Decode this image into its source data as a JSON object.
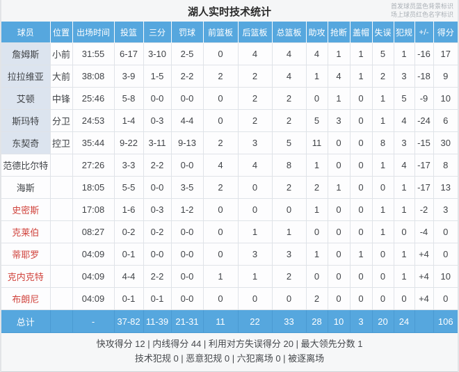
{
  "title": "湖人实时技术统计",
  "legend": {
    "line1": "首发球员蓝色背景标识",
    "line2": "场上球员红色名字标识"
  },
  "colors": {
    "header_blue": "#56a7de",
    "total_row_blue": "#56a7de",
    "starter_name_bg": "#dce4ef",
    "oncourt_name_red": "#d0433c"
  },
  "columns": [
    "球员",
    "位置",
    "出场时间",
    "投篮",
    "三分",
    "罚球",
    "前篮板",
    "后篮板",
    "总篮板",
    "助攻",
    "抢断",
    "盖帽",
    "失误",
    "犯规",
    "+/-",
    "得分"
  ],
  "players": [
    {
      "name": "詹姆斯",
      "position": "小前",
      "starter": true,
      "on_court": false,
      "stats": [
        "31:55",
        "6-17",
        "3-10",
        "2-5",
        "0",
        "4",
        "4",
        "4",
        "1",
        "1",
        "5",
        "1",
        "-16",
        "17"
      ]
    },
    {
      "name": "拉拉维亚",
      "position": "大前",
      "starter": true,
      "on_court": false,
      "stats": [
        "38:08",
        "3-9",
        "1-5",
        "2-2",
        "2",
        "2",
        "4",
        "1",
        "4",
        "1",
        "2",
        "3",
        "-18",
        "9"
      ]
    },
    {
      "name": "艾顿",
      "position": "中锋",
      "starter": true,
      "on_court": false,
      "stats": [
        "25:46",
        "5-8",
        "0-0",
        "0-0",
        "0",
        "2",
        "2",
        "0",
        "1",
        "0",
        "1",
        "5",
        "-9",
        "10"
      ]
    },
    {
      "name": "斯玛特",
      "position": "分卫",
      "starter": true,
      "on_court": false,
      "stats": [
        "24:53",
        "1-4",
        "0-3",
        "4-4",
        "0",
        "2",
        "2",
        "5",
        "3",
        "0",
        "1",
        "4",
        "-24",
        "6"
      ]
    },
    {
      "name": "东契奇",
      "position": "控卫",
      "starter": true,
      "on_court": false,
      "stats": [
        "35:44",
        "9-22",
        "3-11",
        "9-13",
        "2",
        "3",
        "5",
        "11",
        "0",
        "0",
        "8",
        "3",
        "-15",
        "30"
      ]
    },
    {
      "name": "范德比尔特",
      "position": "",
      "starter": false,
      "on_court": false,
      "stats": [
        "27:26",
        "3-3",
        "2-2",
        "0-0",
        "4",
        "4",
        "8",
        "1",
        "0",
        "0",
        "1",
        "4",
        "-17",
        "8"
      ]
    },
    {
      "name": "海斯",
      "position": "",
      "starter": false,
      "on_court": false,
      "stats": [
        "18:05",
        "5-5",
        "0-0",
        "3-5",
        "2",
        "0",
        "2",
        "2",
        "1",
        "0",
        "0",
        "1",
        "-17",
        "13"
      ]
    },
    {
      "name": "史密斯",
      "position": "",
      "starter": false,
      "on_court": true,
      "stats": [
        "17:08",
        "1-6",
        "0-3",
        "1-2",
        "0",
        "0",
        "0",
        "1",
        "0",
        "0",
        "1",
        "1",
        "-2",
        "3"
      ]
    },
    {
      "name": "克莱伯",
      "position": "",
      "starter": false,
      "on_court": true,
      "stats": [
        "08:27",
        "0-2",
        "0-2",
        "0-0",
        "0",
        "1",
        "1",
        "0",
        "0",
        "0",
        "1",
        "0",
        "-4",
        "0"
      ]
    },
    {
      "name": "蒂耶罗",
      "position": "",
      "starter": false,
      "on_court": true,
      "stats": [
        "04:09",
        "0-1",
        "0-0",
        "0-0",
        "0",
        "3",
        "3",
        "1",
        "0",
        "1",
        "0",
        "1",
        "+4",
        "0"
      ]
    },
    {
      "name": "克内克特",
      "position": "",
      "starter": false,
      "on_court": true,
      "stats": [
        "04:09",
        "4-4",
        "2-2",
        "0-0",
        "1",
        "1",
        "2",
        "0",
        "0",
        "0",
        "0",
        "1",
        "+4",
        "10"
      ]
    },
    {
      "name": "布朗尼",
      "position": "",
      "starter": false,
      "on_court": true,
      "stats": [
        "04:09",
        "0-1",
        "0-1",
        "0-0",
        "0",
        "0",
        "0",
        "2",
        "0",
        "0",
        "0",
        "0",
        "+4",
        "0"
      ]
    }
  ],
  "total": {
    "label": "总计",
    "position": "",
    "stats": [
      "-",
      "37-82",
      "11-39",
      "21-31",
      "11",
      "22",
      "33",
      "28",
      "10",
      "3",
      "20",
      "24",
      "",
      "106"
    ]
  },
  "footer": {
    "line1": "快攻得分 12 | 内线得分 44 | 利用对方失误得分 20 | 最大领先分数 1",
    "line2": "技术犯规 0 | 恶意犯规 0 | 六犯离场 0 | 被逐离场"
  }
}
